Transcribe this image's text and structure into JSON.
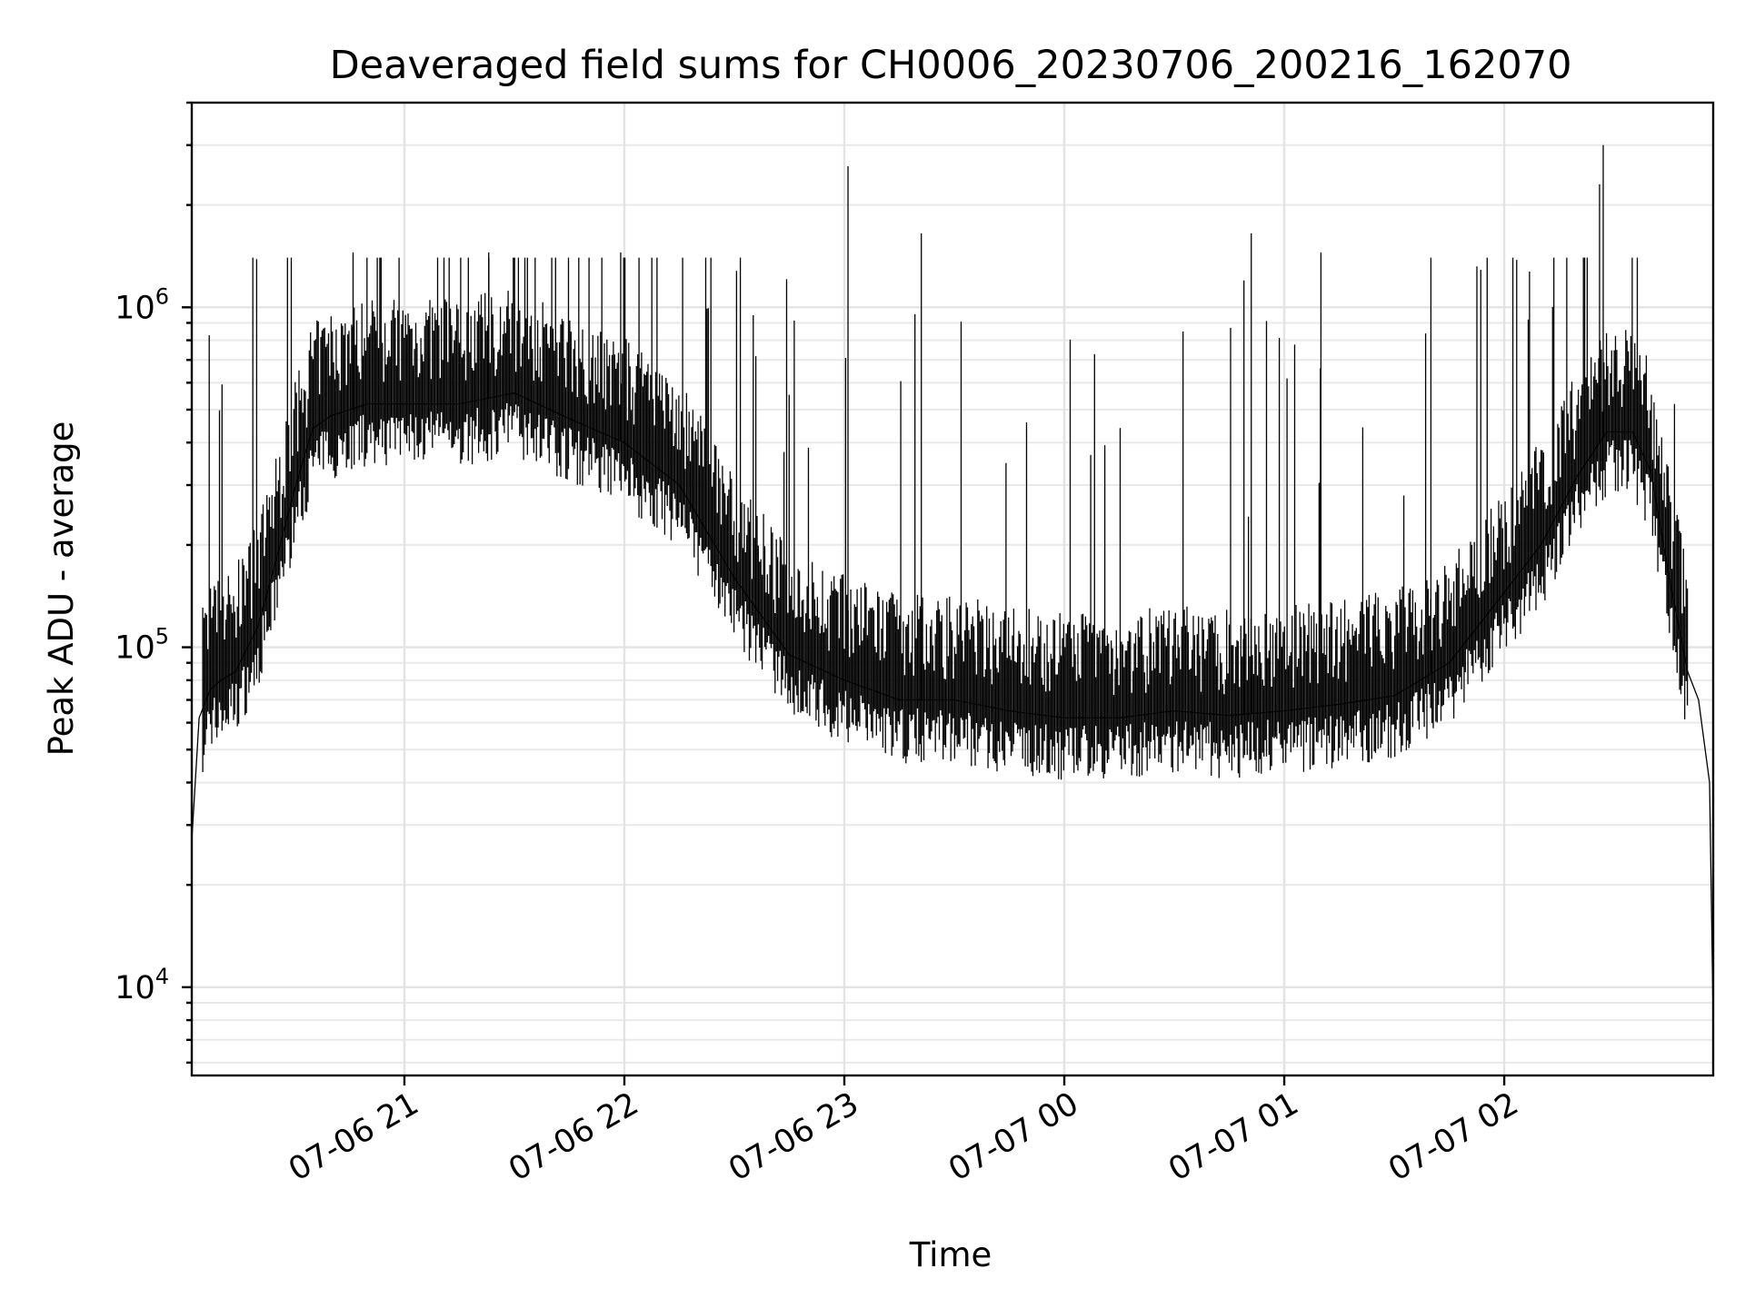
{
  "chart_data": {
    "type": "line",
    "title": "Deaveraged field sums for CH0006_20230706_200216_162070",
    "xlabel": "Time",
    "ylabel": "Peak ADU - average",
    "yscale": "log",
    "xlim": [
      "2023-07-06 20:02",
      "2023-07-07 02:57"
    ],
    "ylim": [
      5500,
      4000000
    ],
    "grid": "on",
    "x_ticks": [
      "07-06 21",
      "07-06 22",
      "07-06 23",
      "07-07 00",
      "07-07 01",
      "07-07 02"
    ],
    "y_ticks": [
      {
        "base": "10",
        "exp": "4",
        "value": 10000
      },
      {
        "base": "10",
        "exp": "5",
        "value": 100000
      },
      {
        "base": "10",
        "exp": "6",
        "value": 1000000
      }
    ],
    "series": [
      {
        "color": "#000000",
        "x": [
          "2023-07-06 20:02",
          "2023-07-06 20:04",
          "2023-07-06 20:07",
          "2023-07-06 20:10",
          "2023-07-06 20:14",
          "2023-07-06 20:20",
          "2023-07-06 20:25",
          "2023-07-06 20:30",
          "2023-07-06 20:35",
          "2023-07-06 20:40",
          "2023-07-06 20:50",
          "2023-07-06 21:00",
          "2023-07-06 21:15",
          "2023-07-06 21:30",
          "2023-07-06 21:45",
          "2023-07-06 22:00",
          "2023-07-06 22:15",
          "2023-07-06 22:30",
          "2023-07-06 22:45",
          "2023-07-06 23:00",
          "2023-07-06 23:15",
          "2023-07-06 23:30",
          "2023-07-06 23:45",
          "2023-07-07 00:00",
          "2023-07-07 00:15",
          "2023-07-07 00:30",
          "2023-07-07 00:45",
          "2023-07-07 01:00",
          "2023-07-07 01:15",
          "2023-07-07 01:30",
          "2023-07-07 01:45",
          "2023-07-07 02:00",
          "2023-07-07 02:10",
          "2023-07-07 02:20",
          "2023-07-07 02:28",
          "2023-07-07 02:35",
          "2023-07-07 02:40",
          "2023-07-07 02:45",
          "2023-07-07 02:50",
          "2023-07-07 02:53",
          "2023-07-07 02:56",
          "2023-07-07 02:57"
        ],
        "y": [
          27000,
          62000,
          75000,
          80000,
          85000,
          115000,
          180000,
          290000,
          440000,
          480000,
          520000,
          520000,
          520000,
          560000,
          470000,
          400000,
          300000,
          160000,
          95000,
          80000,
          70000,
          70000,
          65000,
          62000,
          62000,
          65000,
          63000,
          65000,
          68000,
          72000,
          90000,
          145000,
          200000,
          320000,
          430000,
          430000,
          330000,
          160000,
          85000,
          70000,
          40000,
          8000
        ]
      }
    ],
    "spikes": [
      {
        "x": "2023-07-06 23:01",
        "y": 2600000
      },
      {
        "x": "2023-07-07 02:27",
        "y": 3000000
      },
      {
        "x": "2023-07-07 02:26",
        "y": 2300000
      },
      {
        "x": "2023-07-06 23:21",
        "y": 1650000
      },
      {
        "x": "2023-07-07 00:51",
        "y": 1650000
      },
      {
        "x": "2023-07-07 00:49",
        "y": 1200000
      },
      {
        "x": "2023-07-06 20:46",
        "y": 1450000
      },
      {
        "x": "2023-07-06 21:23",
        "y": 1450000
      },
      {
        "x": "2023-07-06 21:59",
        "y": 1450000
      },
      {
        "x": "2023-07-07 01:10",
        "y": 1450000
      },
      {
        "x": "2023-07-07 01:40",
        "y": 1400000
      }
    ]
  }
}
